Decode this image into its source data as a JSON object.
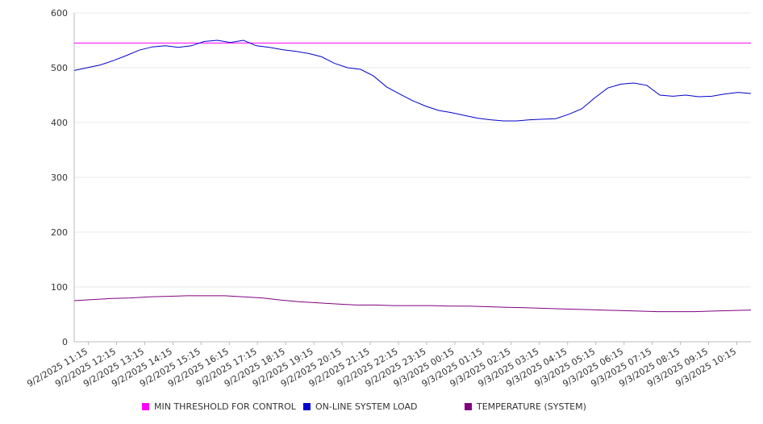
{
  "chart_data": {
    "type": "line",
    "title": "",
    "xlabel": "",
    "ylabel": "",
    "ylim": [
      0,
      600
    ],
    "yticks": [
      0,
      100,
      200,
      300,
      400,
      500,
      600
    ],
    "grid": true,
    "legend_position": "bottom",
    "x_tick_labels": [
      "9/2/2025 11:15",
      "9/2/2025 12:15",
      "9/2/2025 13:15",
      "9/2/2025 14:15",
      "9/2/2025 15:15",
      "9/2/2025 16:15",
      "9/2/2025 17:15",
      "9/2/2025 18:15",
      "9/2/2025 19:15",
      "9/2/2025 20:15",
      "9/2/2025 21:15",
      "9/2/2025 22:15",
      "9/2/2025 23:15",
      "9/3/2025 00:15",
      "9/3/2025 01:15",
      "9/3/2025 02:15",
      "9/3/2025 03:15",
      "9/3/2025 04:15",
      "9/3/2025 05:15",
      "9/3/2025 06:15",
      "9/3/2025 07:15",
      "9/3/2025 08:15",
      "9/3/2025 09:15",
      "9/3/2025 10:15"
    ],
    "series": [
      {
        "name": "MIN THRESHOLD FOR CONTROL",
        "color": "#ff00ff",
        "values": [
          545,
          545,
          545,
          545,
          545,
          545,
          545,
          545,
          545,
          545,
          545,
          545,
          545,
          545,
          545,
          545,
          545,
          545,
          545,
          545,
          545,
          545,
          545,
          545,
          545,
          545,
          545,
          545,
          545,
          545,
          545,
          545,
          545,
          545,
          545,
          545,
          545,
          545,
          545,
          545,
          545,
          545,
          545,
          545,
          545,
          545,
          545,
          545,
          545
        ]
      },
      {
        "name": "ON-LINE SYSTEM LOAD",
        "color": "#0000cc",
        "values": [
          495,
          500,
          505,
          513,
          522,
          532,
          538,
          540,
          537,
          540,
          548,
          550,
          546,
          550,
          540,
          537,
          533,
          530,
          526,
          520,
          508,
          500,
          497,
          485,
          465,
          452,
          440,
          430,
          422,
          418,
          413,
          408,
          405,
          403,
          403,
          405,
          406,
          407,
          415,
          425,
          445,
          463,
          470,
          472,
          468,
          450,
          448,
          450,
          447,
          448,
          452,
          455,
          453
        ]
      },
      {
        "name": "TEMPERATURE (SYSTEM)",
        "color": "#800080",
        "values": [
          75,
          77,
          79,
          80,
          82,
          83,
          84,
          84,
          84,
          82,
          80,
          76,
          73,
          71,
          69,
          67,
          67,
          66,
          66,
          66,
          65,
          65,
          64,
          63,
          62,
          61,
          60,
          59,
          58,
          57,
          56,
          55,
          55,
          55,
          56,
          57,
          58
        ]
      }
    ]
  }
}
